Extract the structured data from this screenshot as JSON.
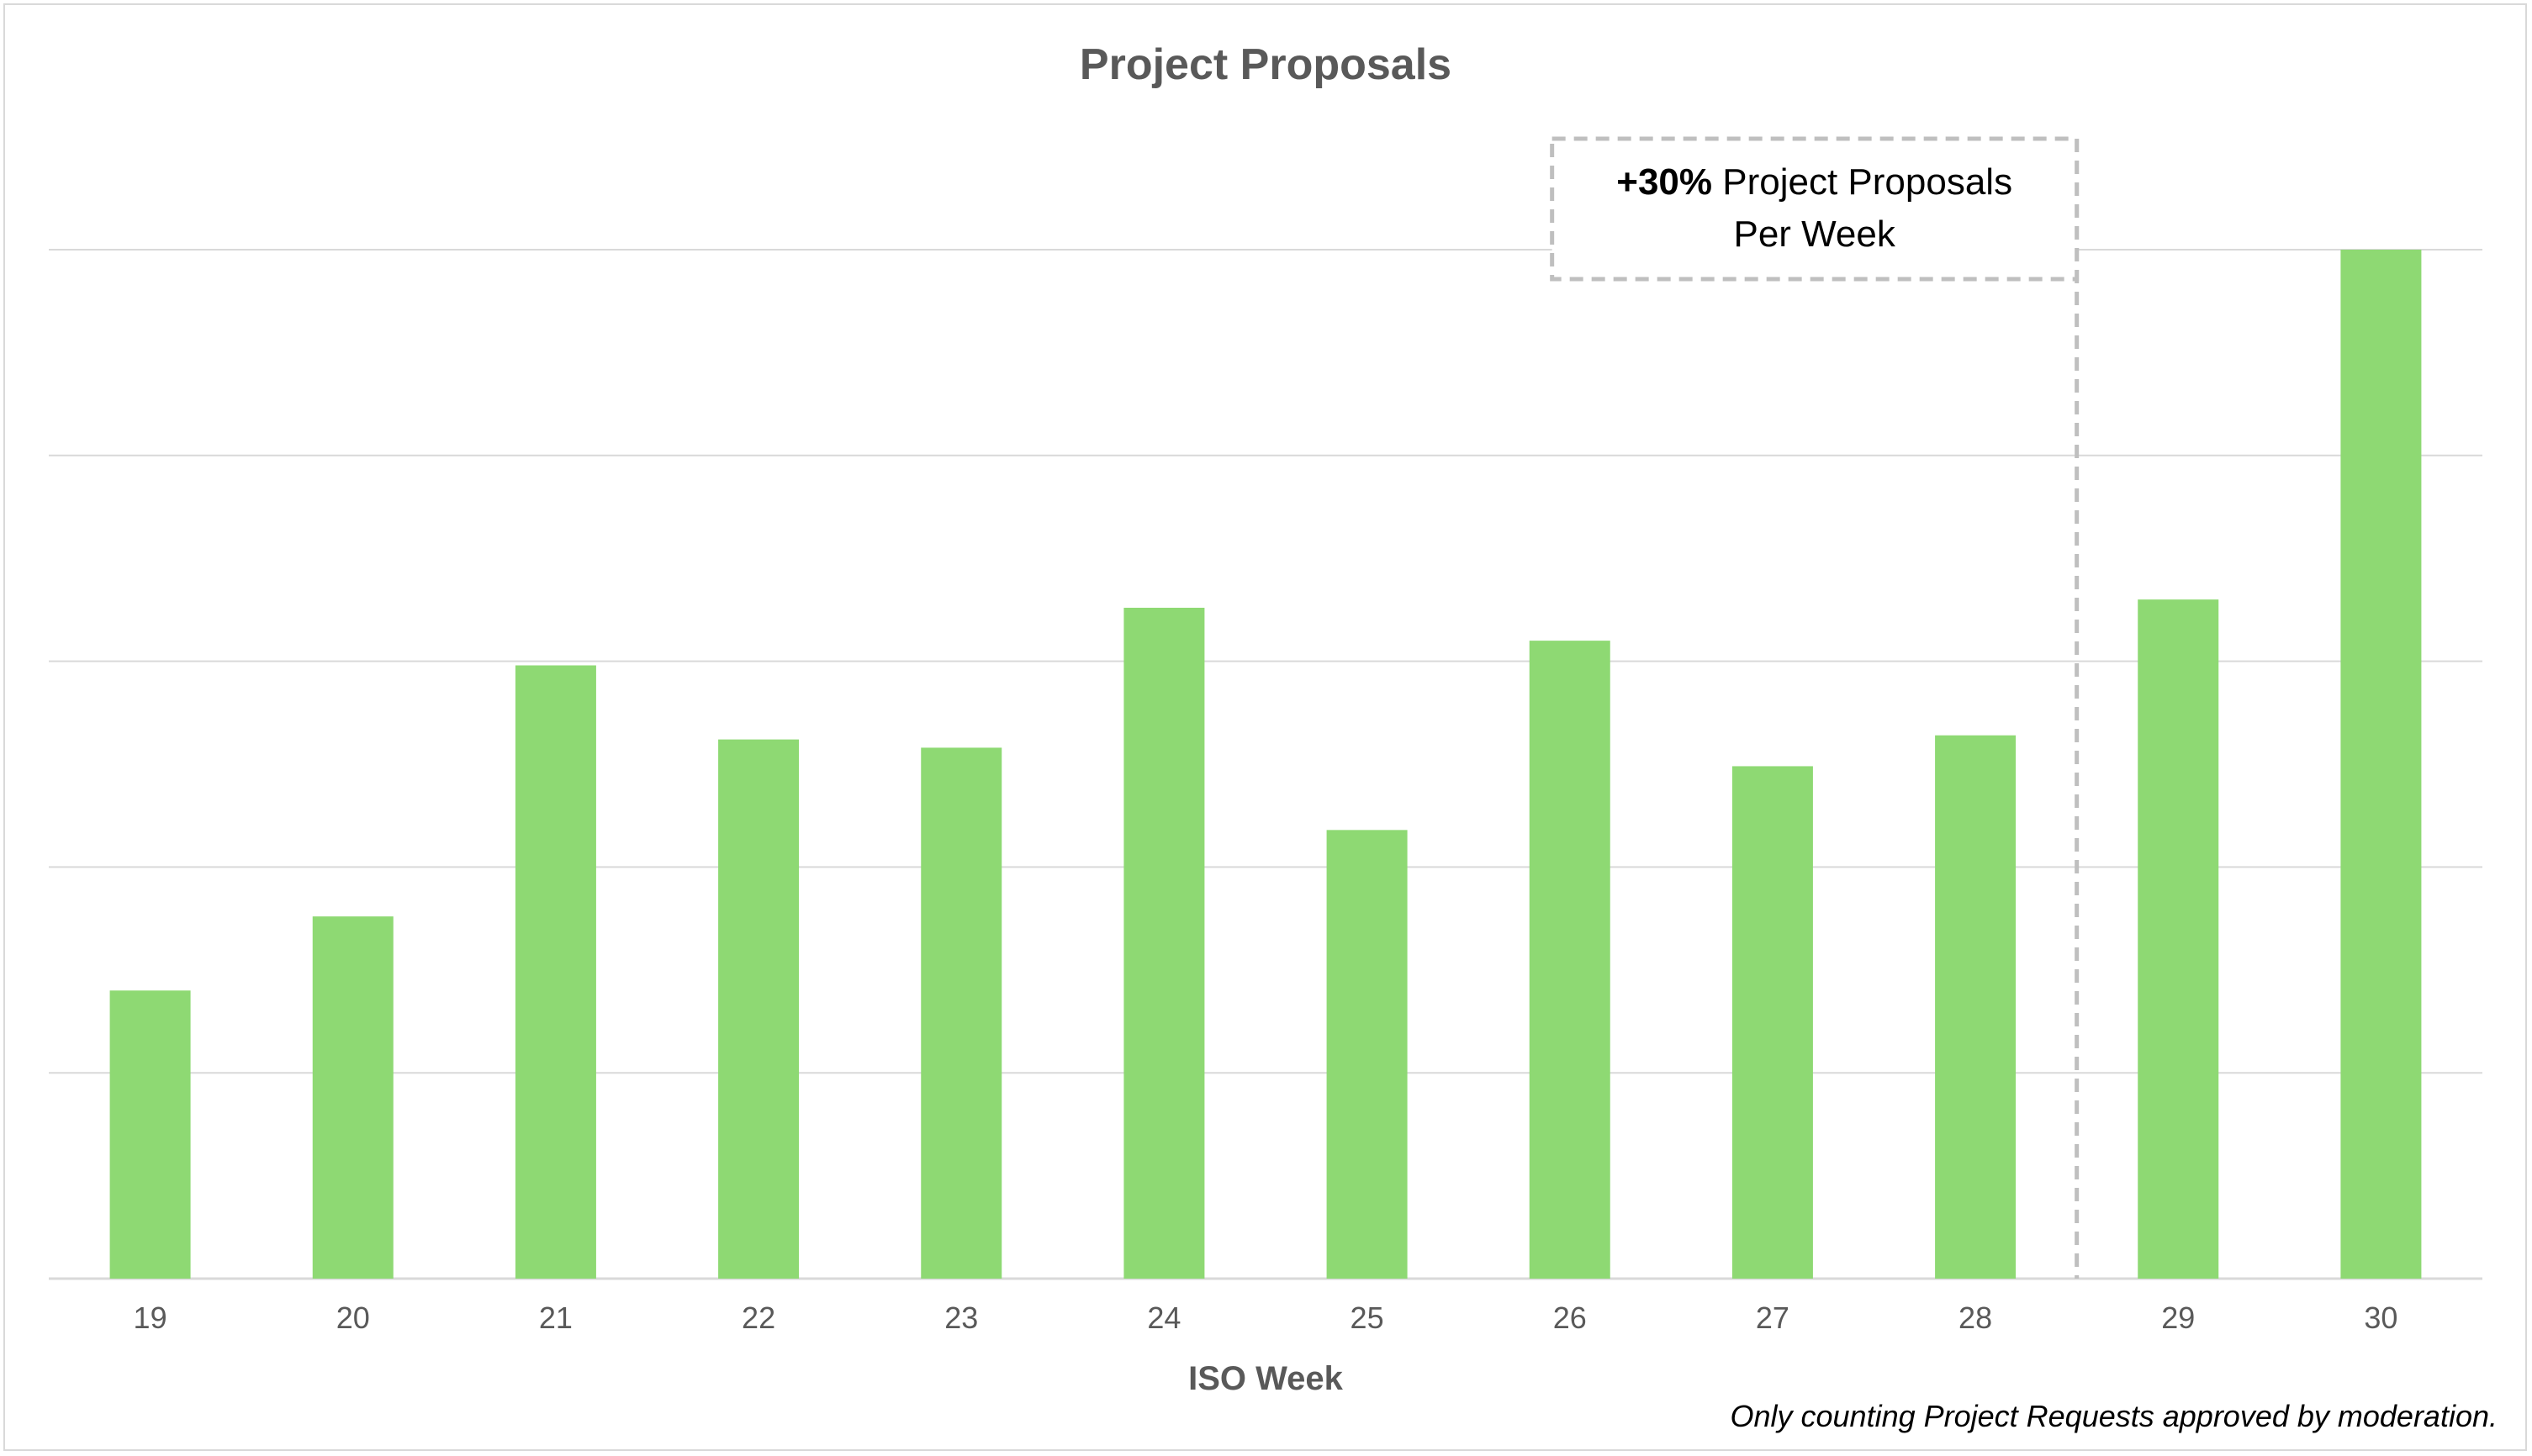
{
  "chart_data": {
    "type": "bar",
    "title": "Project Proposals",
    "xlabel": "ISO Week",
    "ylabel": "",
    "categories": [
      "19",
      "20",
      "21",
      "22",
      "23",
      "24",
      "25",
      "26",
      "27",
      "28",
      "29",
      "30"
    ],
    "values": [
      14,
      17.6,
      29.8,
      26.2,
      25.8,
      32.6,
      21.8,
      31,
      24.9,
      26.4,
      33,
      50
    ],
    "ylim": [
      0,
      50
    ],
    "grid": true,
    "gridline_step": 10,
    "y_tick_labels_shown": false,
    "bar_color": "#8ed973",
    "gridline_color": "#d9d9d9",
    "text_color": "#595959",
    "annotation": {
      "highlight": "+30%",
      "text_line1": "Project Proposals",
      "text_line2": "Per Week",
      "divider_after_category": "28",
      "border_color": "#bfbfbf"
    },
    "footnote": "Only counting Project Requests approved by moderation."
  }
}
